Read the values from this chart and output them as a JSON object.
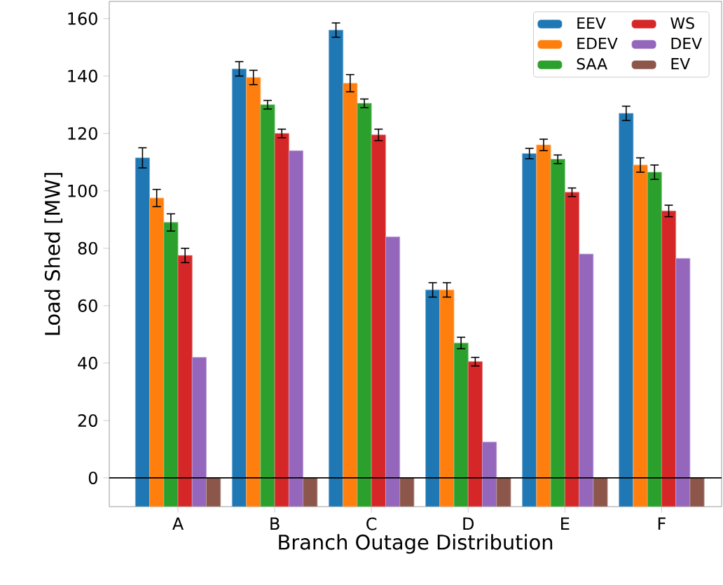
{
  "chart_data": {
    "type": "bar",
    "xlabel": "Branch Outage Distribution",
    "ylabel": "Load Shed [MW]",
    "categories": [
      "A",
      "B",
      "C",
      "D",
      "E",
      "F"
    ],
    "series": [
      {
        "name": "EEV",
        "color": "#1f77b4",
        "base": [
          -10,
          -10,
          -10,
          -10,
          -10,
          -10
        ],
        "values": [
          121.5,
          152.5,
          166,
          75.5,
          123,
          137
        ],
        "errors": [
          3.5,
          2.5,
          2.5,
          2.5,
          1.8,
          2.5
        ]
      },
      {
        "name": "EDEV",
        "color": "#ff7f0e",
        "base": [
          -10,
          -10,
          -10,
          -10,
          -10,
          -10
        ],
        "values": [
          107.5,
          149.5,
          147.5,
          75.5,
          126,
          119
        ],
        "errors": [
          3,
          2.5,
          3,
          2.5,
          2,
          2.5
        ]
      },
      {
        "name": "SAA",
        "color": "#2ca02c",
        "base": [
          -10,
          -10,
          -10,
          -10,
          -10,
          -10
        ],
        "values": [
          99,
          140,
          140.5,
          57,
          121,
          116.5
        ],
        "errors": [
          3,
          1.5,
          1.5,
          2,
          1.5,
          2.5
        ]
      },
      {
        "name": "WS",
        "color": "#d62728",
        "base": [
          -10,
          -10,
          -10,
          -10,
          -10,
          -10
        ],
        "values": [
          87.5,
          130,
          129.5,
          50.5,
          109.5,
          103
        ],
        "errors": [
          2.5,
          1.5,
          2,
          1.5,
          1.5,
          2
        ]
      },
      {
        "name": "DEV",
        "color": "#9467bd",
        "base": [
          -10,
          -10,
          -10,
          -10,
          -10,
          -10
        ],
        "values": [
          52,
          124,
          94,
          22.5,
          88,
          86.5
        ]
      },
      {
        "name": "EV",
        "color": "#8c564b",
        "base": [
          -10,
          -10,
          -10,
          -10,
          -10,
          -10
        ],
        "values": [
          10,
          10,
          10,
          10,
          10,
          10
        ]
      }
    ],
    "ylim": [
      -10,
      166
    ],
    "yticks": [
      0,
      20,
      40,
      60,
      80,
      100,
      120,
      140,
      160
    ],
    "ref_lines": [
      {
        "axis": "y",
        "value": 0,
        "color": "#000000"
      }
    ],
    "legend": "top right",
    "grid": false
  }
}
